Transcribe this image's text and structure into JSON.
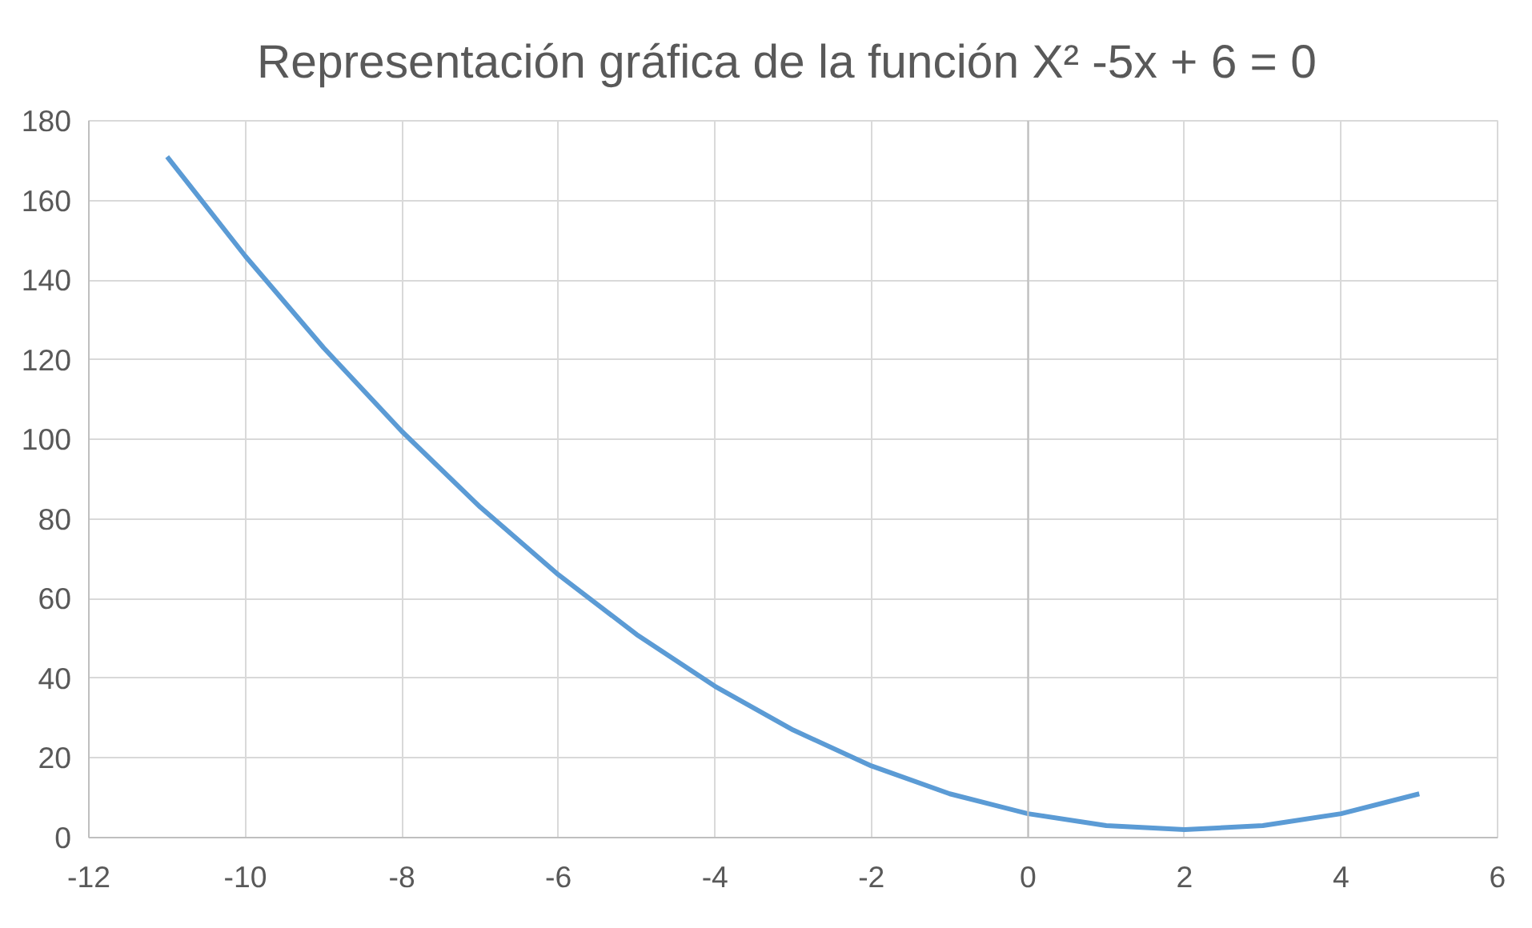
{
  "chart_data": {
    "type": "line",
    "title": "Representación gráfica  de la función X² -5x + 6 = 0",
    "x": [
      -11,
      -10,
      -9,
      -8,
      -7,
      -6,
      -5,
      -4,
      -3,
      -2,
      -1,
      0,
      1,
      2,
      3,
      4,
      5
    ],
    "series": [
      {
        "color": "#5b9bd5",
        "values": [
          171,
          146,
          123,
          102,
          83,
          66,
          51,
          38,
          27,
          18,
          11,
          6,
          3,
          2,
          3,
          6,
          11
        ]
      }
    ],
    "xlim": [
      -12,
      6
    ],
    "ylim": [
      0,
      180
    ],
    "xticks": [
      -12,
      -10,
      -8,
      -6,
      -4,
      -2,
      0,
      2,
      4,
      6
    ],
    "yticks": [
      0,
      20,
      40,
      60,
      80,
      100,
      120,
      140,
      160,
      180
    ],
    "grid": true,
    "marker": "none",
    "line_style": "solid"
  }
}
